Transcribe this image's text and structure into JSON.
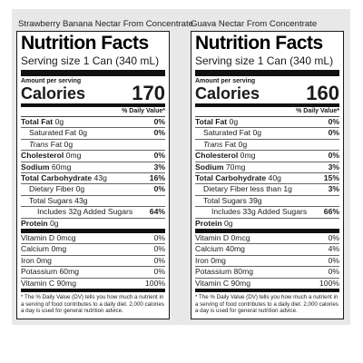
{
  "labels": [
    {
      "product_name": "Strawberry Banana Nectar From Concentrate",
      "title": "Nutrition Facts",
      "serving_size_label": "Serving size",
      "serving_size_value": "1 Can (340 mL)",
      "amount_per_serving": "Amount per serving",
      "calories_label": "Calories",
      "calories_value": "170",
      "dv_header": "% Daily Value*",
      "total_fat": {
        "label": "Total Fat",
        "amount": "0g",
        "dv": "0%"
      },
      "saturated_fat": {
        "label": "Saturated Fat",
        "amount": "0g",
        "dv": "0%"
      },
      "trans_fat": {
        "label": "Trans",
        "suffix": "Fat",
        "amount": "0g"
      },
      "cholesterol": {
        "label": "Cholesterol",
        "amount": "0mg",
        "dv": "0%"
      },
      "sodium": {
        "label": "Sodium",
        "amount": "60mg",
        "dv": "3%"
      },
      "total_carb": {
        "label": "Total Carbohydrate",
        "amount": "43g",
        "dv": "16%"
      },
      "dietary_fiber": {
        "label": "Dietary Fiber",
        "amount": "0g",
        "dv": "0%"
      },
      "total_sugars": {
        "label": "Total Sugars",
        "amount": "43g"
      },
      "added_sugars": {
        "label": "Includes",
        "amount": "32g",
        "suffix": "Added Sugars",
        "dv": "64%"
      },
      "protein": {
        "label": "Protein",
        "amount": "0g"
      },
      "vitamins": [
        {
          "name": "Vitamin D",
          "amount": "0mcg",
          "dv": "0%"
        },
        {
          "name": "Calcium",
          "amount": "0mg",
          "dv": "0%"
        },
        {
          "name": "Iron",
          "amount": "0mg",
          "dv": "0%"
        },
        {
          "name": "Potassium",
          "amount": "60mg",
          "dv": "0%"
        },
        {
          "name": "Vitamin C",
          "amount": "90mg",
          "dv": "100%"
        }
      ],
      "footnote": "* The % Daily Value (DV) tells you how much a nutrient in a serving of food contributes to a daily diet. 2,000 calories a day is used for general nutrition advice."
    },
    {
      "product_name": "Guava Nectar From Concentrate",
      "title": "Nutrition Facts",
      "serving_size_label": "Serving size",
      "serving_size_value": "1 Can (340 mL)",
      "amount_per_serving": "Amount per serving",
      "calories_label": "Calories",
      "calories_value": "160",
      "dv_header": "% Daily Value*",
      "total_fat": {
        "label": "Total Fat",
        "amount": "0g",
        "dv": "0%"
      },
      "saturated_fat": {
        "label": "Saturated Fat",
        "amount": "0g",
        "dv": "0%"
      },
      "trans_fat": {
        "label": "Trans",
        "suffix": "Fat",
        "amount": "0g"
      },
      "cholesterol": {
        "label": "Cholesterol",
        "amount": "0mg",
        "dv": "0%"
      },
      "sodium": {
        "label": "Sodium",
        "amount": "70mg",
        "dv": "3%"
      },
      "total_carb": {
        "label": "Total Carbohydrate",
        "amount": "40g",
        "dv": "15%"
      },
      "dietary_fiber": {
        "label": "Dietary Fiber",
        "amount": "less than 1g",
        "dv": "3%"
      },
      "total_sugars": {
        "label": "Total Sugars",
        "amount": "39g"
      },
      "added_sugars": {
        "label": "Includes",
        "amount": "33g",
        "suffix": "Added Sugars",
        "dv": "66%"
      },
      "protein": {
        "label": "Protein",
        "amount": "0g"
      },
      "vitamins": [
        {
          "name": "Vitamin D",
          "amount": "0mcg",
          "dv": "0%"
        },
        {
          "name": "Calcium",
          "amount": "40mg",
          "dv": "4%"
        },
        {
          "name": "Iron",
          "amount": "0mg",
          "dv": "0%"
        },
        {
          "name": "Potassium",
          "amount": "80mg",
          "dv": "0%"
        },
        {
          "name": "Vitamin C",
          "amount": "90mg",
          "dv": "100%"
        }
      ],
      "footnote": "* The % Daily Value (DV) tells you how much a nutrient in a serving of food contributes to a daily diet. 2,000 calories a day is used for general nutrition advice."
    }
  ]
}
